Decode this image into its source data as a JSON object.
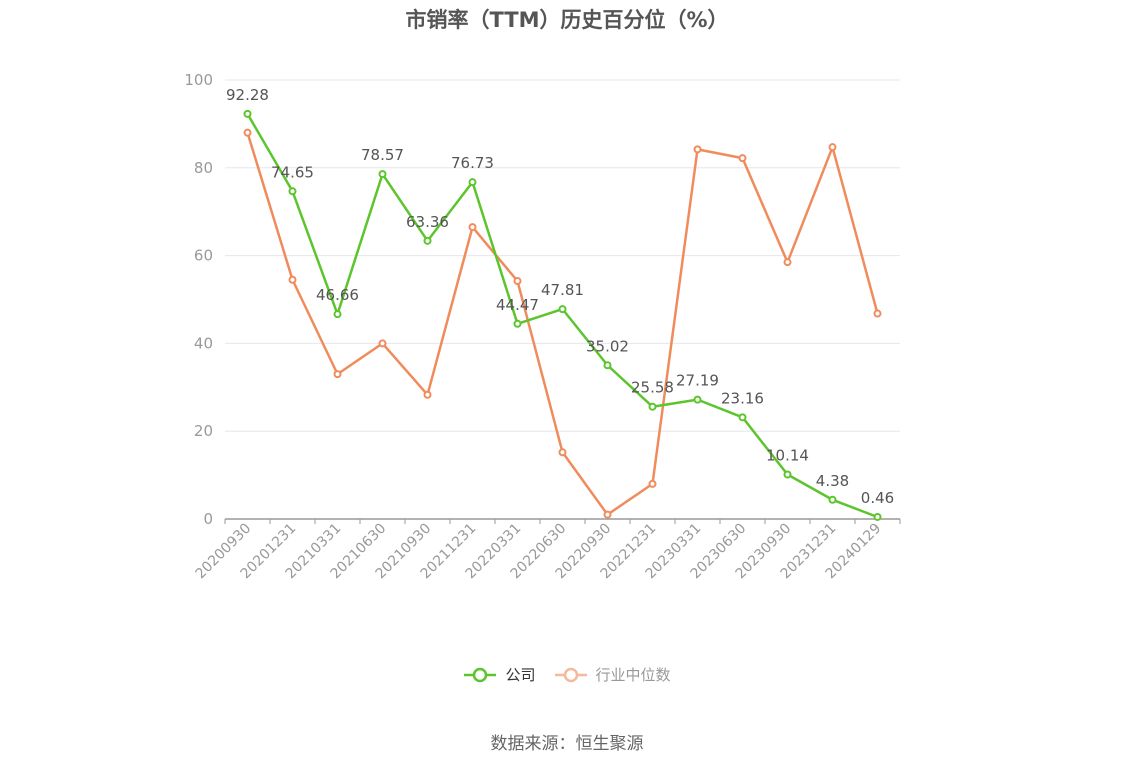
{
  "title": "市销率（TTM）历史百分位（%）",
  "source": "数据来源：恒生聚源",
  "colors": {
    "company": "#5cc52c",
    "industry": "#f08b5c",
    "industry_legend": "#f5b99b",
    "axis": "#999999",
    "grid": "#e6e6ef",
    "label": "#555555"
  },
  "legend": [
    {
      "name": "公司",
      "color": "#5cc52c",
      "text_color": "#333333"
    },
    {
      "name": "行业中位数",
      "color": "#f5b99b",
      "text_color": "#999999"
    }
  ],
  "chart_data": {
    "type": "line",
    "title": "市销率（TTM）历史百分位（%）",
    "categories": [
      "20200930",
      "20201231",
      "20210331",
      "20210630",
      "20210930",
      "20211231",
      "20220331",
      "20220630",
      "20220930",
      "20221231",
      "20230331",
      "20230630",
      "20230930",
      "20231231",
      "20240129"
    ],
    "yticks": [
      "0",
      "20",
      "40",
      "60",
      "80",
      "100"
    ],
    "ylim": [
      0,
      100
    ],
    "grid": true,
    "legend_position": "bottom-center",
    "series": [
      {
        "name": "公司",
        "color": "#5cc52c",
        "show_labels": true,
        "values": [
          92.28,
          74.65,
          46.66,
          78.57,
          63.36,
          76.73,
          44.47,
          47.81,
          35.02,
          25.58,
          27.19,
          23.16,
          10.14,
          4.38,
          0.46
        ],
        "labels": [
          "92.28",
          "74.65",
          "46.66",
          "78.57",
          "63.36",
          "76.73",
          "44.47",
          "47.81",
          "35.02",
          "25.58",
          "27.19",
          "23.16",
          "10.14",
          "4.38",
          "0.46"
        ]
      },
      {
        "name": "行业中位数",
        "color": "#f08b5c",
        "show_labels": false,
        "values": [
          88,
          54.5,
          33,
          40,
          28.3,
          66.5,
          54.2,
          15.2,
          1,
          8,
          84.2,
          82.2,
          58.5,
          84.7,
          46.8
        ]
      }
    ]
  }
}
